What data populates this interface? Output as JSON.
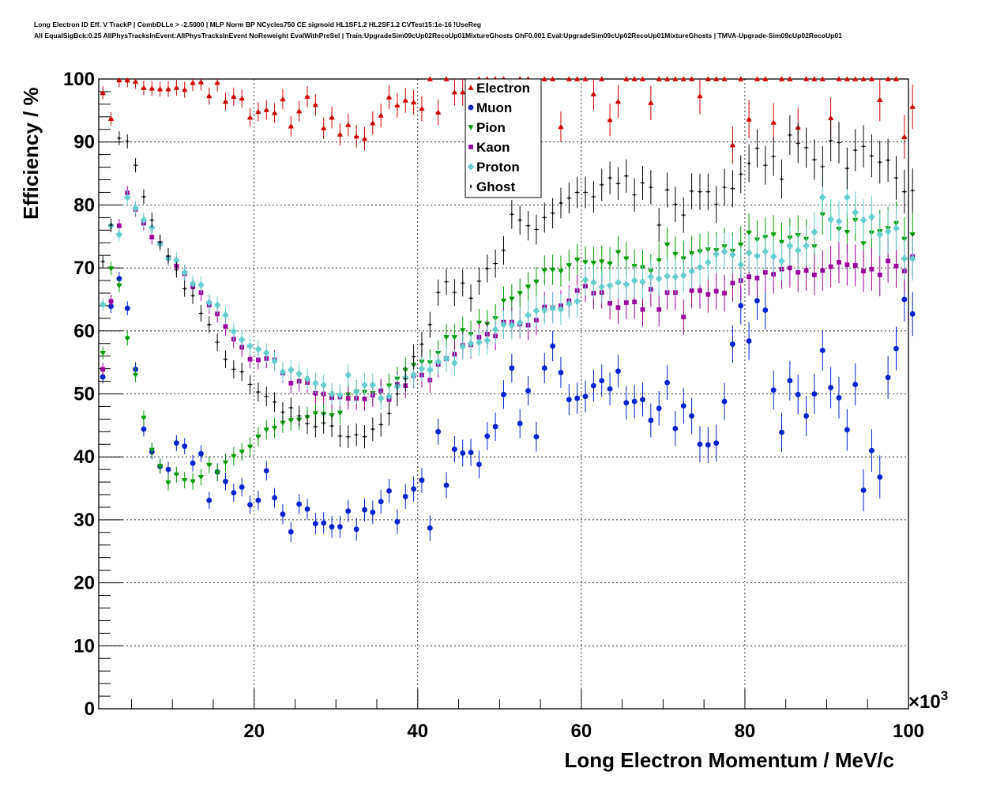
{
  "header": {
    "line1": "Long Electron ID Eff. V TrackP | CombDLLe > -2.5000 | MLP Norm BP NCycles750 CE sigmoid HL1SF1.2 HL2SF1.2 CVTest15:1e-16 !UseReg",
    "line2": "All EqualSigBck:0.25 AllPhysTracksInEvent:AllPhysTracksInEvent NoReweight EvalWithPreSel | Train:UpgradeSim09cUp02RecoUp01MixtureGhosts GhF0.001 Eval:UpgradeSim09cUp02RecoUp01MixtureGhosts | TMVA-Upgrade-Sim09cUp02RecoUp01"
  },
  "chart_data": {
    "type": "scatter",
    "xlabel": "Long Electron Momentum / MeV/c",
    "ylabel": "Efficiency / %",
    "x_multiplier": "×10",
    "x_multiplier_exp": "3",
    "xlim": [
      1,
      100
    ],
    "ylim": [
      0,
      100
    ],
    "x_ticks": [
      "20",
      "40",
      "60",
      "80",
      "100"
    ],
    "y_ticks": [
      "0",
      "10",
      "20",
      "30",
      "40",
      "50",
      "60",
      "70",
      "80",
      "90",
      "100"
    ],
    "grid": true,
    "legend_position": "top-center",
    "x_bin_centers_start": 1.5,
    "x_bin_width": 1,
    "series": [
      {
        "name": "Electron",
        "color": "#cc0000",
        "marker": "triangle-up",
        "values": [
          97.8,
          93.7,
          99.8,
          99.8,
          99.6,
          98.6,
          98.5,
          98.4,
          98.4,
          98.6,
          98.3,
          99.4,
          99.5,
          97.3,
          99.4,
          96.4,
          97.2,
          96.9,
          93.9,
          94.8,
          95.1,
          94.6,
          96.8,
          92.5,
          94.9,
          97.2,
          95.9,
          92.2,
          93.9,
          91.2,
          92.7,
          90.9,
          90.5,
          93.0,
          94.2,
          97.1,
          95.8,
          96.6,
          96.3,
          95.3,
          100,
          94.7,
          100,
          97.9,
          97.9,
          98.1,
          100,
          100,
          100,
          100,
          95.4,
          100,
          100,
          97.4,
          100,
          100,
          92.4,
          100,
          100,
          100,
          97.6,
          100,
          93.5,
          96.4,
          100,
          100,
          100,
          96.2,
          100,
          100,
          100,
          100,
          100,
          97.3,
          100,
          100,
          100,
          89.5,
          100,
          93.6,
          100,
          100,
          93.1,
          100,
          100,
          92.3,
          100,
          100,
          100,
          93.8,
          100,
          100,
          100,
          100,
          100,
          96.7,
          100,
          100,
          90.8,
          95.6
        ]
      },
      {
        "name": "Muon",
        "color": "#0022cc",
        "marker": "circle",
        "values": [
          52.7,
          63.9,
          68.3,
          63.6,
          53.9,
          44.4,
          40.8,
          38.5,
          38.0,
          42.2,
          41.7,
          39.0,
          40.5,
          33.1,
          37.6,
          36.1,
          34.3,
          35.2,
          32.4,
          33.1,
          37.8,
          33.5,
          30.9,
          28.1,
          32.5,
          31.7,
          29.4,
          29.5,
          28.9,
          28.9,
          31.4,
          28.5,
          31.6,
          31.2,
          32.9,
          34.6,
          29.7,
          33.7,
          34.9,
          36.3,
          28.7,
          44.0,
          35.5,
          41.2,
          40.6,
          40.7,
          38.8,
          43.3,
          44.8,
          49.9,
          54.1,
          45.3,
          50.5,
          43.2,
          54.1,
          57.6,
          53.4,
          49.1,
          49.3,
          49.6,
          51.3,
          52.1,
          50.8,
          53.6,
          48.6,
          48.8,
          49.1,
          45.8,
          47.7,
          51.8,
          44.5,
          48.1,
          46.5,
          42.0,
          41.9,
          42.2,
          48.8,
          57.9,
          64.0,
          58.4,
          64.8,
          63.3,
          50.6,
          43.9,
          52.1,
          49.9,
          46.5,
          50.0,
          56.9,
          51.0,
          49.4,
          44.3,
          51.5,
          34.7,
          41.0,
          36.8,
          52.6,
          57.2,
          65.0,
          62.7
        ]
      },
      {
        "name": "Pion",
        "color": "#009900",
        "marker": "triangle-down",
        "values": [
          56.5,
          69.9,
          67.2,
          58.8,
          53.0,
          46.2,
          41.1,
          38.5,
          35.9,
          37.2,
          36.3,
          36.1,
          36.8,
          38.7,
          37.5,
          39.1,
          40.1,
          40.8,
          41.6,
          43.2,
          44.3,
          44.6,
          45.4,
          45.8,
          45.9,
          46.3,
          46.9,
          46.8,
          46.6,
          47.0,
          49.9,
          50.4,
          50.3,
          50.1,
          50.3,
          51.3,
          52.4,
          53.8,
          54.6,
          55.1,
          55.0,
          56.5,
          59.0,
          59.0,
          60.1,
          59.5,
          61.3,
          61.1,
          62.0,
          64.8,
          65.1,
          66.0,
          67.0,
          67.8,
          69.6,
          69.7,
          69.5,
          70.4,
          71.3,
          70.9,
          70.8,
          71.0,
          70.7,
          72.5,
          71.5,
          70.3,
          70.1,
          69.5,
          71.2,
          73.7,
          72.2,
          71.5,
          72.3,
          72.6,
          72.9,
          72.8,
          73.4,
          72.7,
          73.7,
          75.6,
          74.5,
          74.9,
          75.3,
          74.1,
          74.8,
          75.2,
          74.6,
          73.4,
          78.5,
          77.6,
          76.2,
          75.7,
          77.6,
          73.9,
          75.6,
          75.8,
          76.3,
          77.1,
          74.6,
          75.3
        ]
      },
      {
        "name": "Kaon",
        "color": "#990099",
        "marker": "square",
        "values": [
          53.9,
          64.7,
          76.7,
          81.9,
          79.3,
          77.1,
          74.9,
          73.9,
          71.6,
          70.3,
          69.1,
          67.0,
          66.1,
          64.1,
          62.7,
          60.7,
          58.7,
          57.4,
          55.5,
          55.4,
          55.6,
          55.4,
          53.3,
          51.7,
          52.0,
          51.8,
          50.1,
          50.0,
          49.4,
          49.5,
          49.3,
          49.3,
          49.2,
          49.8,
          50.5,
          49.1,
          51.5,
          51.3,
          52.9,
          53.0,
          52.2,
          54.7,
          55.6,
          56.3,
          57.7,
          57.8,
          59.0,
          59.5,
          59.2,
          61.4,
          61.4,
          61.1,
          60.9,
          61.7,
          63.8,
          63.7,
          64.0,
          64.8,
          66.4,
          67.1,
          66.0,
          66.1,
          64.4,
          63.7,
          64.5,
          64.6,
          63.4,
          66.6,
          63.4,
          66.1,
          66.1,
          62.2,
          66.4,
          66.4,
          65.8,
          66.3,
          66.0,
          67.6,
          68.0,
          68.6,
          68.4,
          69.3,
          69.0,
          69.8,
          70.0,
          69.3,
          69.6,
          68.9,
          69.6,
          70.2,
          70.9,
          70.5,
          70.4,
          69.5,
          69.8,
          68.9,
          71.1,
          70.3,
          69.5,
          71.8
        ]
      },
      {
        "name": "Proton",
        "color": "#66cccc",
        "marker": "cross",
        "values": [
          64.2,
          76.7,
          75.3,
          81.2,
          79.5,
          77.6,
          76.4,
          73.8,
          71.5,
          71.2,
          69.3,
          67.5,
          67.3,
          64.5,
          64.1,
          62.5,
          59.9,
          58.6,
          57.6,
          57.1,
          56.5,
          55.2,
          53.5,
          53.8,
          53.2,
          52.4,
          51.7,
          51.4,
          50.0,
          49.8,
          53.0,
          50.3,
          51.4,
          51.4,
          49.3,
          49.6,
          51.2,
          52.6,
          53.0,
          54.0,
          53.8,
          55.1,
          55.6,
          54.9,
          57.5,
          58.0,
          58.2,
          58.5,
          60.2,
          61.0,
          60.9,
          61.3,
          62.5,
          63.2,
          63.3,
          63.6,
          63.4,
          64.3,
          64.7,
          68.1,
          67.7,
          67.0,
          67.2,
          67.7,
          67.4,
          68.0,
          67.8,
          68.6,
          68.3,
          68.7,
          68.6,
          68.8,
          69.5,
          70.1,
          70.9,
          72.2,
          72.6,
          72.1,
          70.5,
          72.4,
          71.9,
          72.6,
          71.8,
          71.1,
          73.5,
          72.8,
          73.5,
          75.7,
          81.2,
          77.7,
          77.4,
          81.2,
          78.8,
          77.6,
          78.1,
          75.3,
          75.8,
          76.3,
          71.5,
          71.5
        ]
      },
      {
        "name": "Ghost",
        "color": "#000000",
        "marker": "star",
        "values": [
          71.0,
          76.8,
          90.6,
          90.1,
          86.3,
          81.3,
          77.6,
          74.1,
          71.9,
          69.7,
          66.7,
          65.6,
          62.8,
          61.0,
          58.2,
          55.5,
          53.9,
          53.5,
          51.5,
          50.3,
          49.6,
          48.7,
          47.1,
          47.8,
          46.5,
          45.3,
          44.8,
          45.4,
          44.9,
          43.3,
          43.2,
          43.5,
          43.2,
          44.4,
          45.1,
          46.9,
          50.0,
          52.4,
          55.9,
          57.9,
          61.0,
          66.1,
          67.8,
          66.1,
          67.6,
          65.2,
          67.9,
          69.9,
          70.7,
          72.8,
          78.5,
          77.6,
          76.7,
          76.1,
          78.0,
          78.7,
          80.3,
          81.1,
          82.0,
          82.0,
          81.3,
          83.2,
          84.3,
          83.4,
          84.6,
          81.6,
          83.5,
          82.8,
          76.8,
          82.4,
          80.1,
          78.4,
          82.2,
          82.1,
          82.1,
          80.1,
          82.8,
          82.6,
          84.9,
          86.6,
          89.0,
          86.3,
          87.7,
          84.1,
          91.1,
          89.8,
          89.1,
          87.2,
          86.1,
          90.2,
          89.9,
          85.8,
          88.7,
          89.3,
          87.8,
          86.8,
          87.1,
          84.3,
          82.1,
          82.3
        ]
      }
    ]
  }
}
